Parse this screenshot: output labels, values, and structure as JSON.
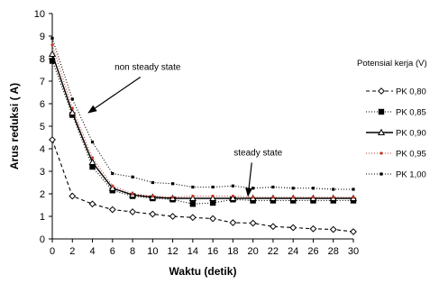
{
  "chart_data": {
    "type": "line",
    "xlabel": "Waktu (detik)",
    "ylabel": "Arus reduksi (    A)",
    "xlim": [
      0,
      30
    ],
    "ylim": [
      0,
      10
    ],
    "x_ticks": [
      0,
      2,
      4,
      6,
      8,
      10,
      12,
      14,
      16,
      18,
      20,
      22,
      24,
      26,
      28,
      30
    ],
    "y_ticks": [
      0,
      1,
      2,
      3,
      4,
      5,
      6,
      7,
      8,
      9,
      10
    ],
    "grid": false,
    "legend_title": "Potensial kerja (V)",
    "legend_position": "right",
    "annotations": [
      {
        "text": "non steady state",
        "x": 9.5,
        "y": 7.5,
        "arrow_to": [
          3.6,
          5.6
        ]
      },
      {
        "text": "steady state",
        "x": 20.5,
        "y": 3.7,
        "arrow_to": [
          19.5,
          1.9
        ]
      }
    ],
    "x": [
      0,
      2,
      4,
      6,
      8,
      10,
      12,
      14,
      16,
      18,
      20,
      22,
      24,
      26,
      28,
      30
    ],
    "series": [
      {
        "name": "PK 0,80",
        "color": "#000000",
        "dash": "4,3",
        "marker": "diamond",
        "values": [
          4.4,
          1.9,
          1.55,
          1.3,
          1.2,
          1.1,
          1.0,
          0.95,
          0.9,
          0.72,
          0.7,
          0.55,
          0.5,
          0.45,
          0.42,
          0.32
        ]
      },
      {
        "name": "PK 0,85",
        "color": "#000000",
        "dash": "1,2",
        "marker": "square",
        "values": [
          7.9,
          5.5,
          3.2,
          2.15,
          1.9,
          1.8,
          1.75,
          1.55,
          1.6,
          1.75,
          1.7,
          1.7,
          1.7,
          1.7,
          1.7,
          1.7
        ]
      },
      {
        "name": "PK 0,90",
        "color": "#000000",
        "dash": "",
        "marker": "triangle",
        "values": [
          8.2,
          5.6,
          3.4,
          2.25,
          1.95,
          1.85,
          1.8,
          1.8,
          1.8,
          1.8,
          1.8,
          1.8,
          1.8,
          1.8,
          1.8,
          1.8
        ]
      },
      {
        "name": "PK 0,95",
        "color": "#c0392b",
        "dash": "1,2",
        "marker": "dot",
        "values": [
          8.6,
          5.8,
          3.6,
          2.35,
          2.0,
          1.9,
          1.85,
          1.9,
          1.9,
          1.9,
          1.85,
          1.85,
          1.85,
          1.85,
          1.85,
          1.85
        ]
      },
      {
        "name": "PK 1,00",
        "color": "#000000",
        "dash": "1,2",
        "marker": "smallsquare",
        "values": [
          8.9,
          6.2,
          4.3,
          2.9,
          2.75,
          2.5,
          2.45,
          2.3,
          2.3,
          2.35,
          2.25,
          2.3,
          2.25,
          2.25,
          2.2,
          2.2
        ]
      }
    ]
  }
}
